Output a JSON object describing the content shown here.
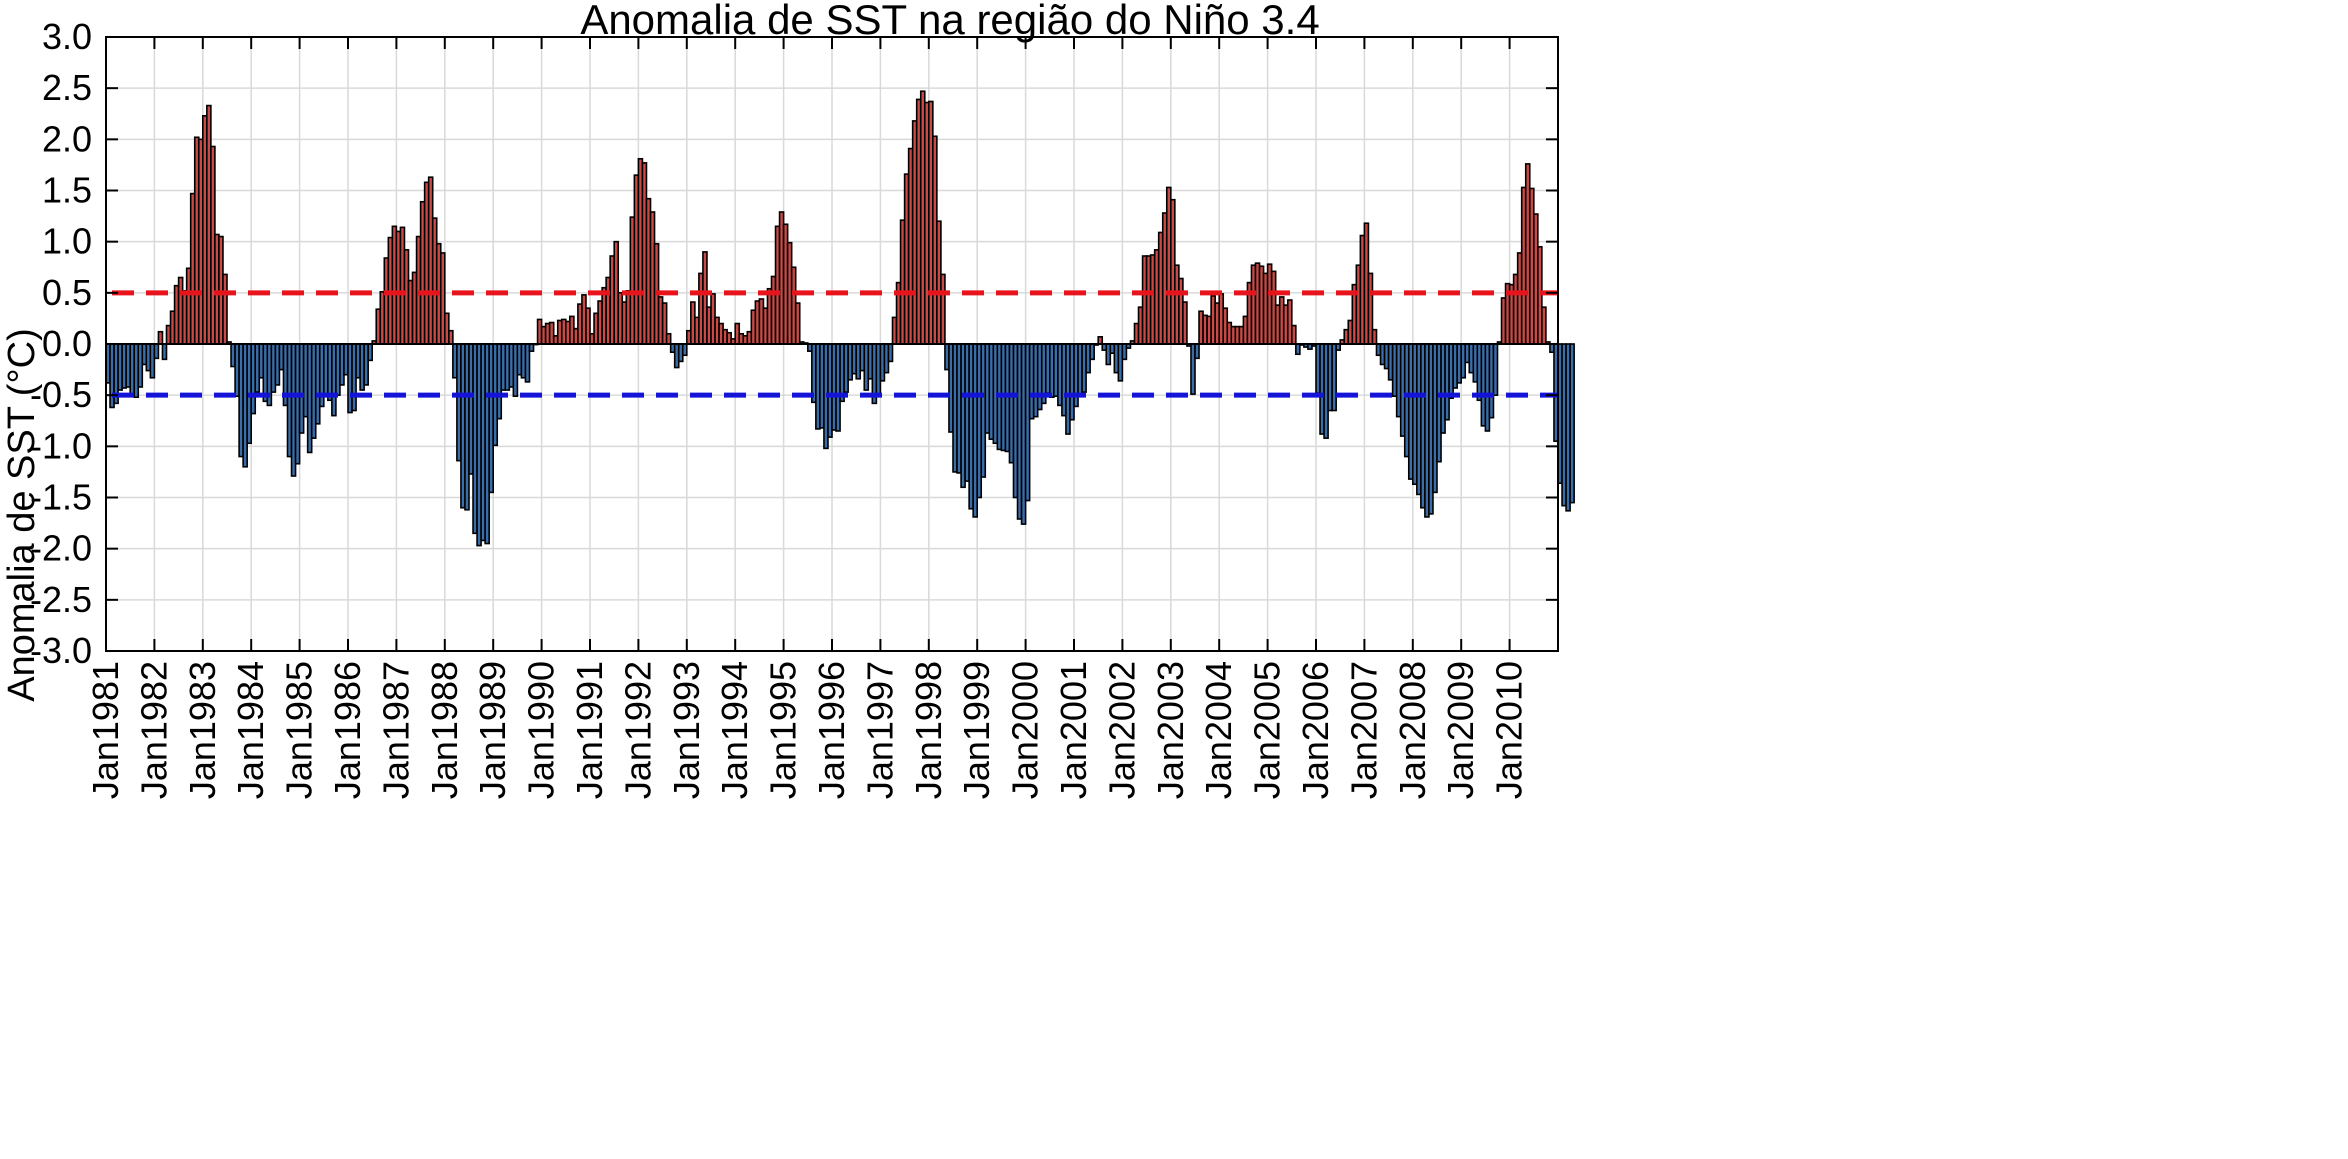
{
  "chart_data": {
    "type": "bar",
    "title": "Anomalia de SST na região do Niño 3.4",
    "ylabel": "Anomalia de SST (°C)",
    "xlabel": "",
    "ylim": [
      -3.0,
      3.0
    ],
    "xlim": [
      "1981-01",
      "2010-12"
    ],
    "grid": true,
    "legend": "none",
    "yticks": [
      "3.0",
      "2.5",
      "2.0",
      "1.5",
      "1.0",
      "0.5",
      "0.0",
      "-0.5",
      "-1.0",
      "-1.5",
      "-2.0",
      "-2.5",
      "-3.0"
    ],
    "xticks": [
      "Jan1981",
      "Jan1982",
      "Jan1983",
      "Jan1984",
      "Jan1985",
      "Jan1986",
      "Jan1987",
      "Jan1988",
      "Jan1989",
      "Jan1990",
      "Jan1991",
      "Jan1992",
      "Jan1993",
      "Jan1994",
      "Jan1995",
      "Jan1996",
      "Jan1997",
      "Jan1998",
      "Jan1999",
      "Jan2000",
      "Jan2001",
      "Jan2002",
      "Jan2003",
      "Jan2004",
      "Jan2005",
      "Jan2006",
      "Jan2007",
      "Jan2008",
      "Jan2009",
      "Jan2010"
    ],
    "threshold_lines": [
      {
        "value": 0.5,
        "color": "#e8141c",
        "style": "dashed"
      },
      {
        "value": -0.5,
        "color": "#1414d8",
        "style": "dashed"
      }
    ],
    "colors": {
      "positive": "#c94a46",
      "negative": "#3b6ea8",
      "edge": "#000000"
    },
    "series": [
      {
        "start": "1981-01",
        "step": "month",
        "values": [
          -0.38,
          -0.62,
          -0.58,
          -0.45,
          -0.43,
          -0.42,
          -0.5,
          -0.52,
          -0.42,
          -0.2,
          -0.26,
          -0.33,
          -0.14,
          0.12,
          -0.15,
          0.18,
          0.32,
          0.57,
          0.65,
          0.52,
          0.74,
          1.47,
          2.02,
          2.0,
          2.23,
          2.33,
          1.93,
          1.07,
          1.05,
          0.68,
          0.02,
          -0.22,
          -0.51,
          -1.1,
          -1.2,
          -0.97,
          -0.68,
          -0.47,
          -0.33,
          -0.56,
          -0.6,
          -0.47,
          -0.4,
          -0.25,
          -0.6,
          -1.1,
          -1.29,
          -1.17,
          -0.87,
          -0.71,
          -1.06,
          -0.92,
          -0.78,
          -0.61,
          -0.51,
          -0.55,
          -0.7,
          -0.5,
          -0.4,
          -0.3,
          -0.67,
          -0.65,
          -0.33,
          -0.45,
          -0.4,
          -0.16,
          0.03,
          0.34,
          0.51,
          0.84,
          1.04,
          1.15,
          1.1,
          1.14,
          0.92,
          0.62,
          0.7,
          1.05,
          1.39,
          1.58,
          1.63,
          1.23,
          0.98,
          0.89,
          0.3,
          0.13,
          -0.33,
          -1.14,
          -1.6,
          -1.62,
          -1.27,
          -1.85,
          -1.97,
          -1.92,
          -1.95,
          -1.45,
          -0.99,
          -0.73,
          -0.45,
          -0.45,
          -0.42,
          -0.51,
          -0.3,
          -0.33,
          -0.37,
          -0.07,
          0.0,
          0.24,
          0.17,
          0.2,
          0.21,
          0.08,
          0.23,
          0.24,
          0.22,
          0.27,
          0.15,
          0.39,
          0.48,
          0.35,
          0.1,
          0.3,
          0.42,
          0.55,
          0.65,
          0.86,
          1.0,
          0.5,
          0.41,
          0.52,
          1.24,
          1.65,
          1.81,
          1.77,
          1.42,
          1.29,
          0.98,
          0.46,
          0.4,
          0.1,
          -0.08,
          -0.23,
          -0.17,
          -0.11,
          0.13,
          0.41,
          0.26,
          0.69,
          0.9,
          0.36,
          0.49,
          0.26,
          0.2,
          0.14,
          0.11,
          0.05,
          0.2,
          0.1,
          0.08,
          0.12,
          0.33,
          0.42,
          0.44,
          0.35,
          0.54,
          0.66,
          1.15,
          1.29,
          1.17,
          0.99,
          0.75,
          0.4,
          0.02,
          0.01,
          -0.07,
          -0.57,
          -0.83,
          -0.82,
          -1.02,
          -0.91,
          -0.84,
          -0.85,
          -0.56,
          -0.47,
          -0.35,
          -0.29,
          -0.34,
          -0.26,
          -0.45,
          -0.34,
          -0.58,
          -0.5,
          -0.36,
          -0.28,
          -0.17,
          0.26,
          0.6,
          1.21,
          1.66,
          1.91,
          2.18,
          2.39,
          2.47,
          2.36,
          2.37,
          2.03,
          1.2,
          0.68,
          -0.25,
          -0.86,
          -1.25,
          -1.26,
          -1.4,
          -1.34,
          -1.61,
          -1.69,
          -1.5,
          -1.3,
          -0.87,
          -0.93,
          -0.97,
          -1.03,
          -1.04,
          -1.05,
          -1.16,
          -1.5,
          -1.71,
          -1.76,
          -1.53,
          -0.73,
          -0.71,
          -0.64,
          -0.58,
          -0.48,
          -0.52,
          -0.51,
          -0.6,
          -0.7,
          -0.88,
          -0.74,
          -0.61,
          -0.5,
          -0.47,
          -0.28,
          -0.15,
          -0.01,
          0.07,
          -0.06,
          -0.2,
          -0.09,
          -0.28,
          -0.36,
          -0.15,
          -0.04,
          0.03,
          0.2,
          0.36,
          0.86,
          0.86,
          0.87,
          0.92,
          1.09,
          1.28,
          1.53,
          1.41,
          0.77,
          0.64,
          0.41,
          -0.02,
          -0.49,
          -0.14,
          0.32,
          0.28,
          0.27,
          0.47,
          0.4,
          0.49,
          0.35,
          0.21,
          0.17,
          0.17,
          0.17,
          0.27,
          0.6,
          0.77,
          0.79,
          0.76,
          0.69,
          0.78,
          0.71,
          0.38,
          0.46,
          0.38,
          0.43,
          0.18,
          -0.1,
          -0.01,
          -0.03,
          -0.05,
          -0.02,
          -0.48,
          -0.88,
          -0.92,
          -0.65,
          -0.65,
          -0.06,
          0.04,
          0.14,
          0.23,
          0.58,
          0.77,
          1.06,
          1.18,
          0.69,
          0.14,
          -0.11,
          -0.2,
          -0.24,
          -0.35,
          -0.51,
          -0.71,
          -0.9,
          -1.1,
          -1.32,
          -1.37,
          -1.47,
          -1.6,
          -1.69,
          -1.66,
          -1.45,
          -1.15,
          -0.87,
          -0.74,
          -0.53,
          -0.43,
          -0.38,
          -0.33,
          -0.18,
          -0.28,
          -0.37,
          -0.55,
          -0.8,
          -0.85,
          -0.72,
          -0.5,
          0.02,
          0.45,
          0.59,
          0.58,
          0.68,
          0.89,
          1.53,
          1.76,
          1.52,
          1.27,
          0.95,
          0.36,
          0.02,
          -0.08,
          -0.95,
          -1.36,
          -1.58,
          -1.63,
          -1.55
        ]
      }
    ]
  }
}
